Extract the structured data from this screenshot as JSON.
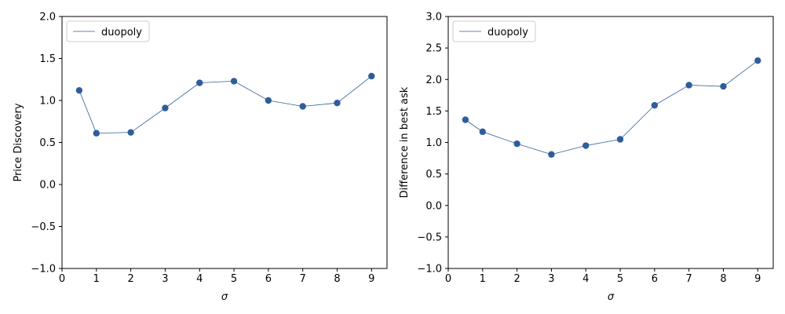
{
  "chart_data": [
    {
      "type": "line",
      "xlabel": "σ",
      "ylabel": "Price Discovery",
      "xlim": [
        0,
        9.45
      ],
      "ylim": [
        -1.0,
        2.0
      ],
      "xticks": [
        0,
        1,
        2,
        3,
        4,
        5,
        6,
        7,
        8,
        9
      ],
      "yticks": [
        -1.0,
        -0.5,
        0.0,
        0.5,
        1.0,
        1.5,
        2.0
      ],
      "legend_position": "top-left",
      "grid": false,
      "color": "#2f5d9b",
      "series": [
        {
          "name": "duopoly",
          "x": [
            0.5,
            1,
            2,
            3,
            4,
            5,
            6,
            7,
            8,
            9
          ],
          "y": [
            1.12,
            0.61,
            0.62,
            0.91,
            1.21,
            1.23,
            1.0,
            0.93,
            0.97,
            1.29
          ]
        }
      ]
    },
    {
      "type": "line",
      "xlabel": "σ",
      "ylabel": "Difference in best ask",
      "xlim": [
        0,
        9.45
      ],
      "ylim": [
        -1.0,
        3.0
      ],
      "xticks": [
        0,
        1,
        2,
        3,
        4,
        5,
        6,
        7,
        8,
        9
      ],
      "yticks": [
        -1.0,
        -0.5,
        0.0,
        0.5,
        1.0,
        1.5,
        2.0,
        2.5,
        3.0
      ],
      "legend_position": "top-left",
      "grid": false,
      "color": "#2f5d9b",
      "series": [
        {
          "name": "duopoly",
          "x": [
            0.5,
            1,
            2,
            3,
            4,
            5,
            6,
            7,
            8,
            9
          ],
          "y": [
            1.36,
            1.17,
            0.98,
            0.81,
            0.95,
            1.05,
            1.59,
            1.91,
            1.89,
            2.3
          ]
        }
      ]
    }
  ]
}
